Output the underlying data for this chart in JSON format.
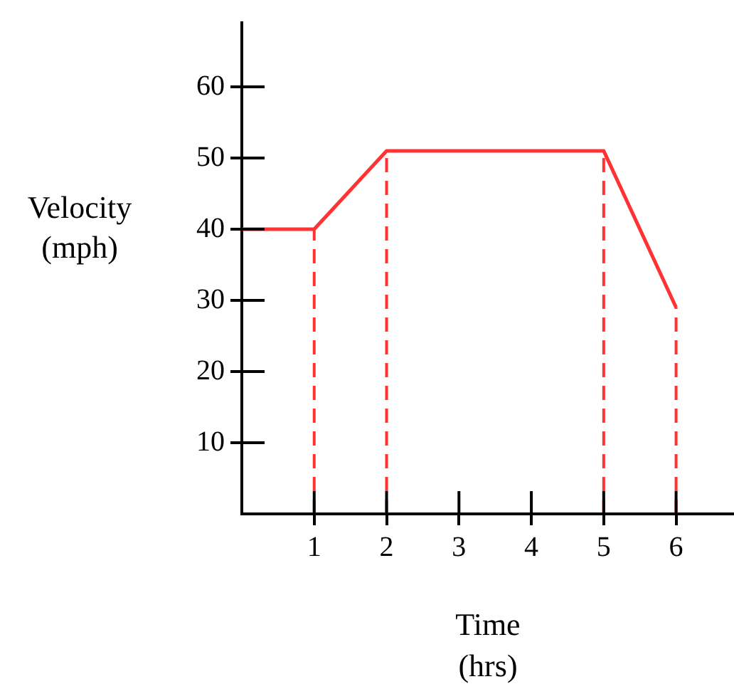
{
  "chart_data": {
    "type": "line",
    "xlabel": "Time\n(hrs)",
    "ylabel": "Velocity\n(mph)",
    "x": [
      0,
      1,
      2,
      5,
      6
    ],
    "series": [
      {
        "color": "#ff3333",
        "values": [
          40,
          40,
          51,
          51,
          29
        ]
      }
    ],
    "xlim": [
      0,
      6.8
    ],
    "ylim": [
      0,
      69
    ],
    "xticks": [
      1,
      2,
      3,
      4,
      5,
      6
    ],
    "yticks": [
      10,
      20,
      30,
      40,
      50,
      60
    ],
    "ref_lines": [
      {
        "axis": "x",
        "value": 1,
        "color": "#ff3333",
        "line_style": "dashed"
      },
      {
        "axis": "x",
        "value": 2,
        "color": "#ff3333",
        "line_style": "dashed"
      },
      {
        "axis": "x",
        "value": 5,
        "color": "#ff3333",
        "line_style": "dashed"
      },
      {
        "axis": "x",
        "value": 6,
        "color": "#ff3333",
        "line_style": "dashed"
      }
    ],
    "grid": false,
    "legend": false,
    "marker": "none",
    "line_style": "solid"
  }
}
